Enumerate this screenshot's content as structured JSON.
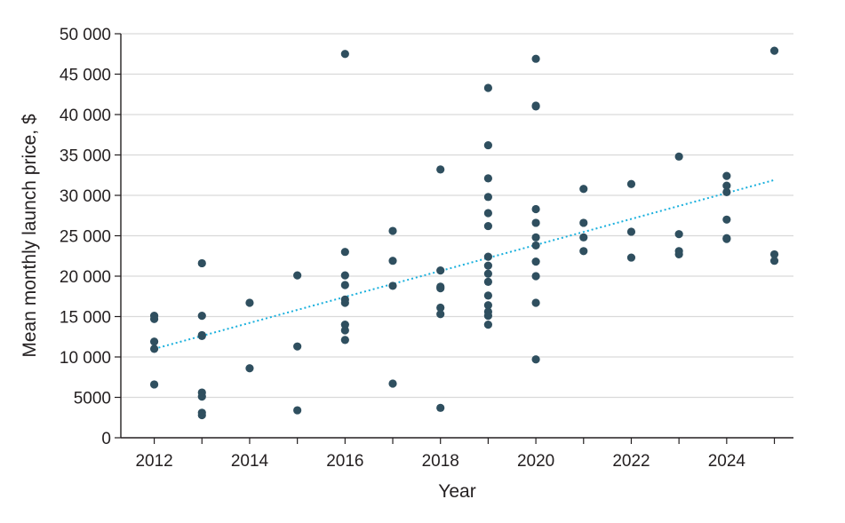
{
  "chart_data": {
    "type": "scatter",
    "xlabel": "Year",
    "ylabel": "Mean monthly launch price, $",
    "xlim": [
      2011.3,
      2025.4
    ],
    "ylim": [
      0,
      50000
    ],
    "xticks": [
      "2012",
      "2014",
      "2016",
      "2018",
      "2020",
      "2022",
      "2024"
    ],
    "yticks": [
      "0",
      "5000",
      "10 000",
      "15 000",
      "20 000",
      "25 000",
      "30 000",
      "35 000",
      "40 000",
      "45 000",
      "50 000"
    ],
    "grid": "horizontal",
    "colors": {
      "points": "#2f4f5f",
      "trendline": "#1ab0dd",
      "grid": "#d9d9d9",
      "axis": "#231f20"
    },
    "series": [
      {
        "points": [
          [
            2012,
            15100
          ],
          [
            2012,
            14700
          ],
          [
            2012,
            11900
          ],
          [
            2012,
            11000
          ],
          [
            2012,
            6600
          ],
          [
            2013,
            21600
          ],
          [
            2013,
            15100
          ],
          [
            2013,
            12700
          ],
          [
            2013,
            12600
          ],
          [
            2013,
            5600
          ],
          [
            2013,
            5100
          ],
          [
            2013,
            3100
          ],
          [
            2013,
            2800
          ],
          [
            2014,
            16700
          ],
          [
            2014,
            8600
          ],
          [
            2015,
            20100
          ],
          [
            2015,
            11300
          ],
          [
            2015,
            3400
          ],
          [
            2016,
            47500
          ],
          [
            2016,
            23000
          ],
          [
            2016,
            20100
          ],
          [
            2016,
            18900
          ],
          [
            2016,
            17100
          ],
          [
            2016,
            16700
          ],
          [
            2016,
            14000
          ],
          [
            2016,
            13300
          ],
          [
            2016,
            12100
          ],
          [
            2017,
            25600
          ],
          [
            2017,
            21900
          ],
          [
            2017,
            18800
          ],
          [
            2017,
            6700
          ],
          [
            2018,
            33200
          ],
          [
            2018,
            20700
          ],
          [
            2018,
            18700
          ],
          [
            2018,
            18500
          ],
          [
            2018,
            16100
          ],
          [
            2018,
            15300
          ],
          [
            2018,
            3700
          ],
          [
            2019,
            43300
          ],
          [
            2019,
            36200
          ],
          [
            2019,
            32100
          ],
          [
            2019,
            29800
          ],
          [
            2019,
            27800
          ],
          [
            2019,
            26200
          ],
          [
            2019,
            22400
          ],
          [
            2019,
            21300
          ],
          [
            2019,
            20300
          ],
          [
            2019,
            19300
          ],
          [
            2019,
            17600
          ],
          [
            2019,
            16400
          ],
          [
            2019,
            15600
          ],
          [
            2019,
            15100
          ],
          [
            2019,
            14000
          ],
          [
            2020,
            46900
          ],
          [
            2020,
            41100
          ],
          [
            2020,
            41000
          ],
          [
            2020,
            28300
          ],
          [
            2020,
            26600
          ],
          [
            2020,
            24800
          ],
          [
            2020,
            23800
          ],
          [
            2020,
            21800
          ],
          [
            2020,
            20000
          ],
          [
            2020,
            16700
          ],
          [
            2020,
            9700
          ],
          [
            2021,
            30800
          ],
          [
            2021,
            26600
          ],
          [
            2021,
            24800
          ],
          [
            2021,
            23100
          ],
          [
            2022,
            31400
          ],
          [
            2022,
            25500
          ],
          [
            2022,
            22300
          ],
          [
            2023,
            34800
          ],
          [
            2023,
            25200
          ],
          [
            2023,
            23100
          ],
          [
            2023,
            22700
          ],
          [
            2024,
            32400
          ],
          [
            2024,
            31200
          ],
          [
            2024,
            30400
          ],
          [
            2024,
            27000
          ],
          [
            2024,
            24700
          ],
          [
            2024,
            24600
          ],
          [
            2025,
            47900
          ],
          [
            2025,
            22700
          ],
          [
            2025,
            21900
          ]
        ]
      }
    ],
    "trendline": {
      "style": "dotted",
      "x": [
        2012,
        2025
      ],
      "y": [
        11000,
        31900
      ]
    }
  }
}
